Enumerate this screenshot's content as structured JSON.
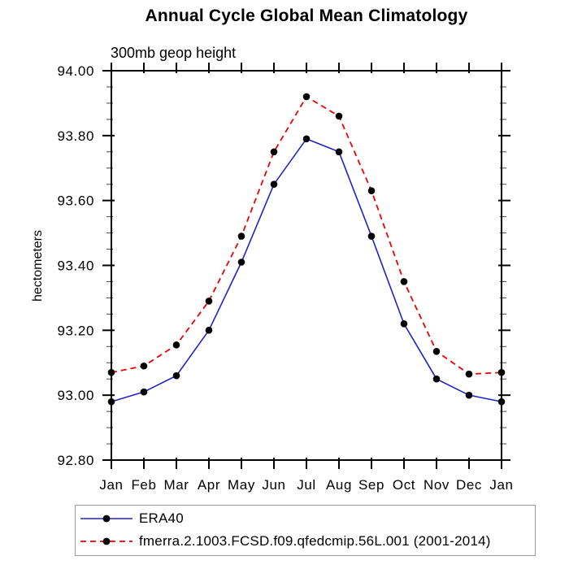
{
  "page": {
    "background": "#ffffff"
  },
  "chart_data": {
    "type": "line",
    "title": "Annual Cycle Global Mean Climatology",
    "subtitle": "300mb geop height",
    "ylabel": "hectometers",
    "xlabel": "",
    "categories": [
      "Jan",
      "Feb",
      "Mar",
      "Apr",
      "May",
      "Jun",
      "Jul",
      "Aug",
      "Sep",
      "Oct",
      "Nov",
      "Dec",
      "Jan"
    ],
    "ylim": [
      92.8,
      94.0
    ],
    "ytick_step": 0.2,
    "yminor_step": 0.05,
    "ytick_labels": [
      "94.00",
      "93.80",
      "93.60",
      "93.40",
      "93.20",
      "93.00",
      "92.80"
    ],
    "grid": false,
    "legend_position": "bottom",
    "axis_color": "#000000",
    "marker": "filled-circle",
    "marker_color": "#000000",
    "series": [
      {
        "name": "ERA40",
        "color": "#2222cc",
        "line_style": "solid",
        "values": [
          92.98,
          93.01,
          93.06,
          93.2,
          93.41,
          93.65,
          93.79,
          93.75,
          93.49,
          93.22,
          93.05,
          93.0,
          92.98
        ]
      },
      {
        "name": "fmerra.2.1003.FCSD.f09.qfedcmip.56L.001 (2001-2014)",
        "color": "#ee0000",
        "line_style": "dashed",
        "values": [
          93.07,
          93.09,
          93.155,
          93.29,
          93.49,
          93.75,
          93.92,
          93.86,
          93.63,
          93.35,
          93.135,
          93.065,
          93.07
        ]
      }
    ]
  }
}
